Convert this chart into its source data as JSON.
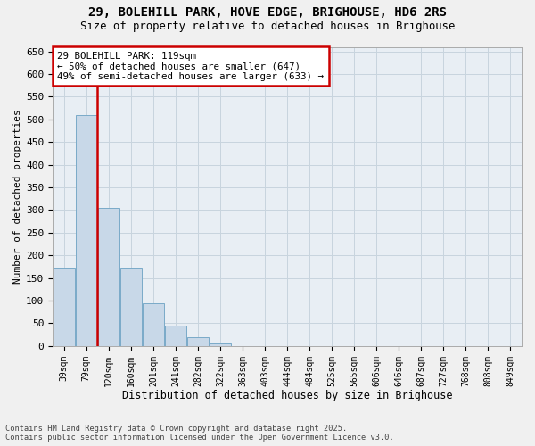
{
  "title_line1": "29, BOLEHILL PARK, HOVE EDGE, BRIGHOUSE, HD6 2RS",
  "title_line2": "Size of property relative to detached houses in Brighouse",
  "xlabel": "Distribution of detached houses by size in Brighouse",
  "ylabel": "Number of detached properties",
  "bin_labels": [
    "39sqm",
    "79sqm",
    "120sqm",
    "160sqm",
    "201sqm",
    "241sqm",
    "282sqm",
    "322sqm",
    "363sqm",
    "403sqm",
    "444sqm",
    "484sqm",
    "525sqm",
    "565sqm",
    "606sqm",
    "646sqm",
    "687sqm",
    "727sqm",
    "768sqm",
    "808sqm",
    "849sqm"
  ],
  "bar_values": [
    170,
    510,
    305,
    170,
    95,
    45,
    20,
    5,
    0,
    0,
    0,
    0,
    0,
    0,
    0,
    0,
    0,
    0,
    0,
    0,
    0
  ],
  "bar_color": "#c8d8e8",
  "bar_edge_color": "#7aaac8",
  "annotation_title": "29 BOLEHILL PARK: 119sqm",
  "annotation_line1": "← 50% of detached houses are smaller (647)",
  "annotation_line2": "49% of semi-detached houses are larger (633) →",
  "annotation_box_color": "#cc0000",
  "vline_color": "#cc0000",
  "vline_x": 2.0,
  "ylim": [
    0,
    660
  ],
  "yticks": [
    0,
    50,
    100,
    150,
    200,
    250,
    300,
    350,
    400,
    450,
    500,
    550,
    600,
    650
  ],
  "grid_color": "#c8d4de",
  "background_color": "#e8eef4",
  "fig_background": "#f0f0f0",
  "footer_line1": "Contains HM Land Registry data © Crown copyright and database right 2025.",
  "footer_line2": "Contains public sector information licensed under the Open Government Licence v3.0."
}
